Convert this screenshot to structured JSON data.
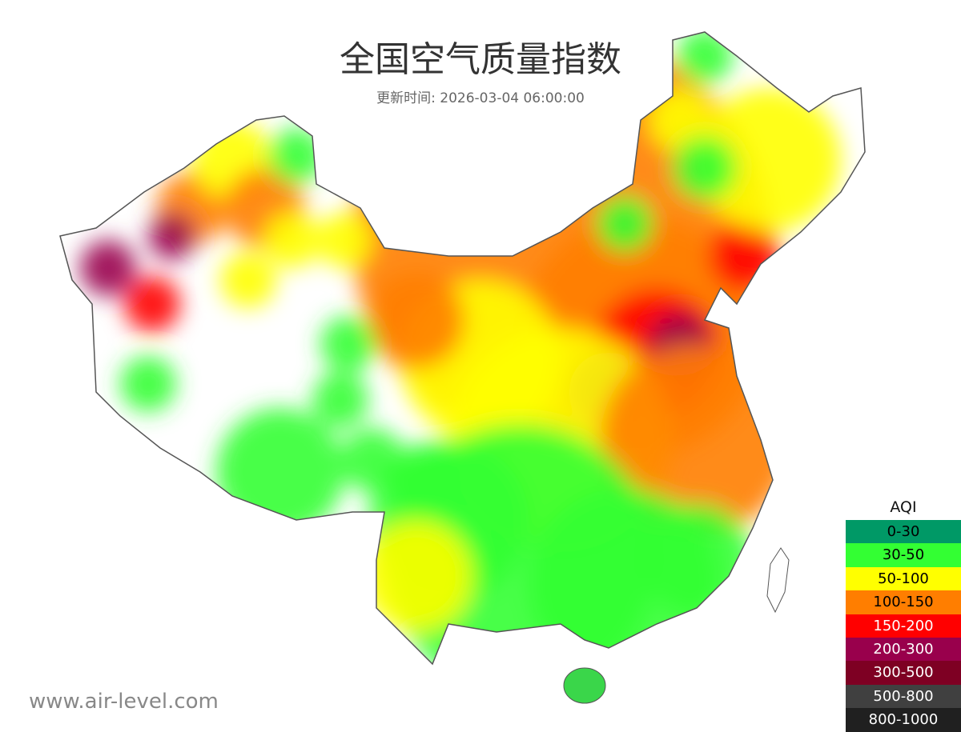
{
  "title": "全国空气质量指数",
  "subtitle": "更新时间: 2026-03-04 06:00:00",
  "watermark": "www.air-level.com",
  "legend": {
    "title": "AQI",
    "items": [
      {
        "label": "0-30",
        "color": "#009966",
        "text_color": "#000000"
      },
      {
        "label": "30-50",
        "color": "#33ff33",
        "text_color": "#000000"
      },
      {
        "label": "50-100",
        "color": "#ffff00",
        "text_color": "#000000"
      },
      {
        "label": "100-150",
        "color": "#ff7e00",
        "text_color": "#000000"
      },
      {
        "label": "150-200",
        "color": "#ff0000",
        "text_color": "#ffffff"
      },
      {
        "label": "200-300",
        "color": "#99004c",
        "text_color": "#ffffff"
      },
      {
        "label": "300-500",
        "color": "#7e0023",
        "text_color": "#ffffff"
      },
      {
        "label": "500-800",
        "color": "#404040",
        "text_color": "#ffffff"
      },
      {
        "label": "800-1000",
        "color": "#202020",
        "text_color": "#ffffff"
      }
    ]
  }
}
